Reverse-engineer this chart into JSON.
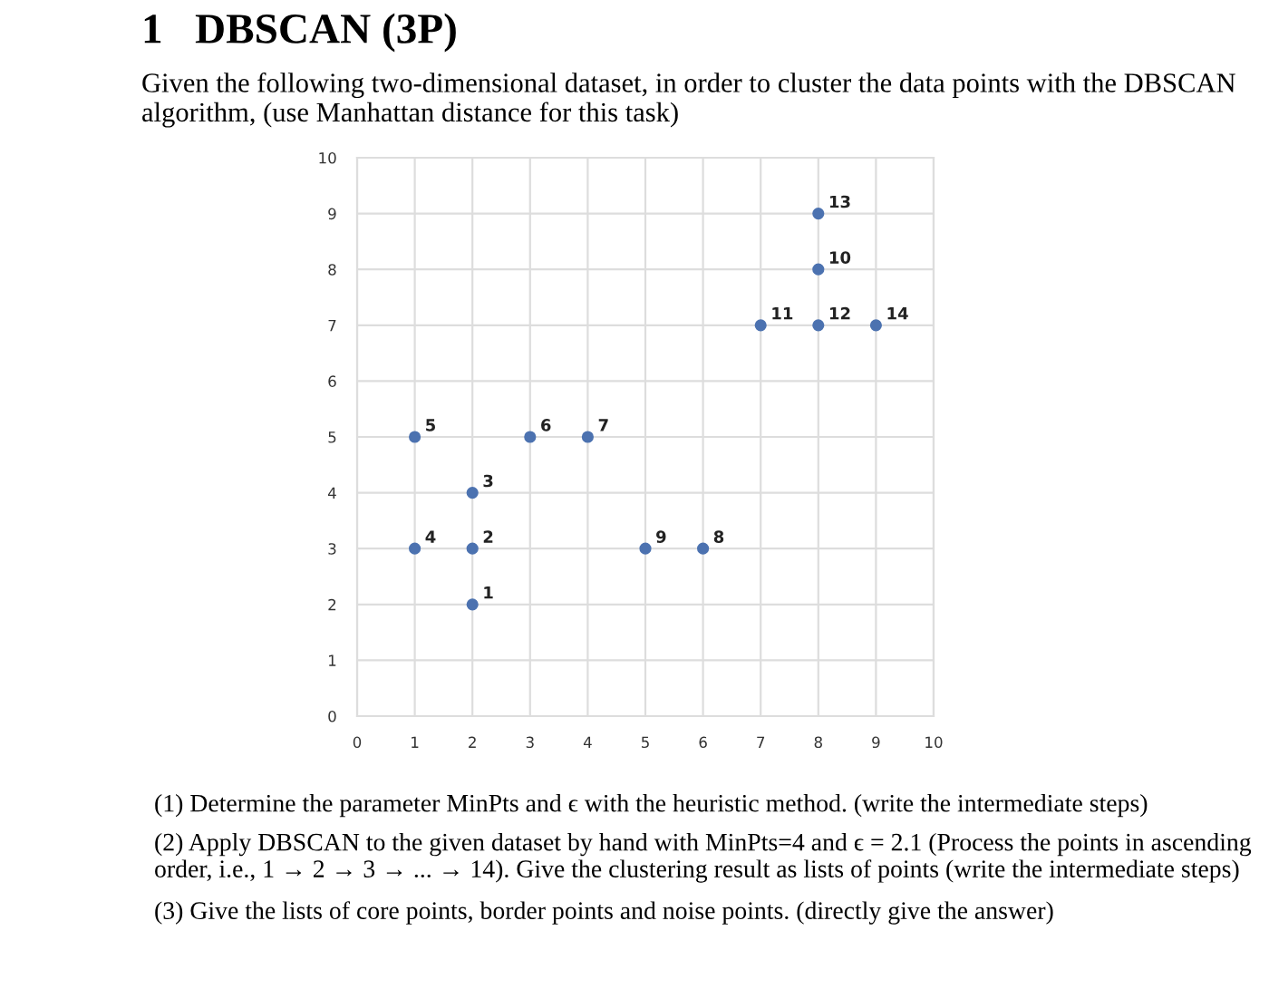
{
  "chart_data": {
    "type": "scatter",
    "title": "1   DBSCAN (3P)",
    "subtitle": "Given the following two-dimensional dataset, in order to cluster the data points with the DBSCAN algorithm, (use Manhattan distance for this task)",
    "x": [
      2,
      2,
      2,
      1,
      1,
      3,
      4,
      6,
      5,
      8,
      7,
      8,
      8,
      9
    ],
    "values": [
      2,
      3,
      4,
      3,
      5,
      5,
      5,
      3,
      3,
      8,
      7,
      7,
      9,
      7
    ],
    "color": "#4c72b0",
    "marker": "circle",
    "xlim": [
      0,
      10
    ],
    "ylim": [
      0,
      10
    ],
    "xticks": [
      0,
      1,
      2,
      3,
      4,
      5,
      6,
      7,
      8,
      9,
      10
    ],
    "yticks": [
      0,
      1,
      2,
      3,
      4,
      5,
      6,
      7,
      8,
      9,
      10
    ],
    "grid": true,
    "annotations": [
      {
        "text": "1",
        "x": 2,
        "y": 2
      },
      {
        "text": "2",
        "x": 2,
        "y": 3
      },
      {
        "text": "3",
        "x": 2,
        "y": 4
      },
      {
        "text": "4",
        "x": 1,
        "y": 3
      },
      {
        "text": "5",
        "x": 1,
        "y": 5
      },
      {
        "text": "6",
        "x": 3,
        "y": 5
      },
      {
        "text": "7",
        "x": 4,
        "y": 5
      },
      {
        "text": "8",
        "x": 6,
        "y": 3
      },
      {
        "text": "9",
        "x": 5,
        "y": 3
      },
      {
        "text": "10",
        "x": 8,
        "y": 8
      },
      {
        "text": "11",
        "x": 7,
        "y": 7
      },
      {
        "text": "12",
        "x": 8,
        "y": 7
      },
      {
        "text": "13",
        "x": 8,
        "y": 9
      },
      {
        "text": "14",
        "x": 9,
        "y": 7
      },
      "(1) Determine the parameter MinPts and ϵ with the heuristic method. (write the intermediate steps)",
      "(2) Apply DBSCAN to the given dataset by hand with MinPts=4 and ϵ = 2.1 (Process the points in ascending order, i.e., 1 → 2 → 3 → ... → 14). Give the clustering result as lists of points (write the intermediate steps)",
      "(3) Give the lists of core points, border points and noise points. (directly give the answer)"
    ]
  }
}
